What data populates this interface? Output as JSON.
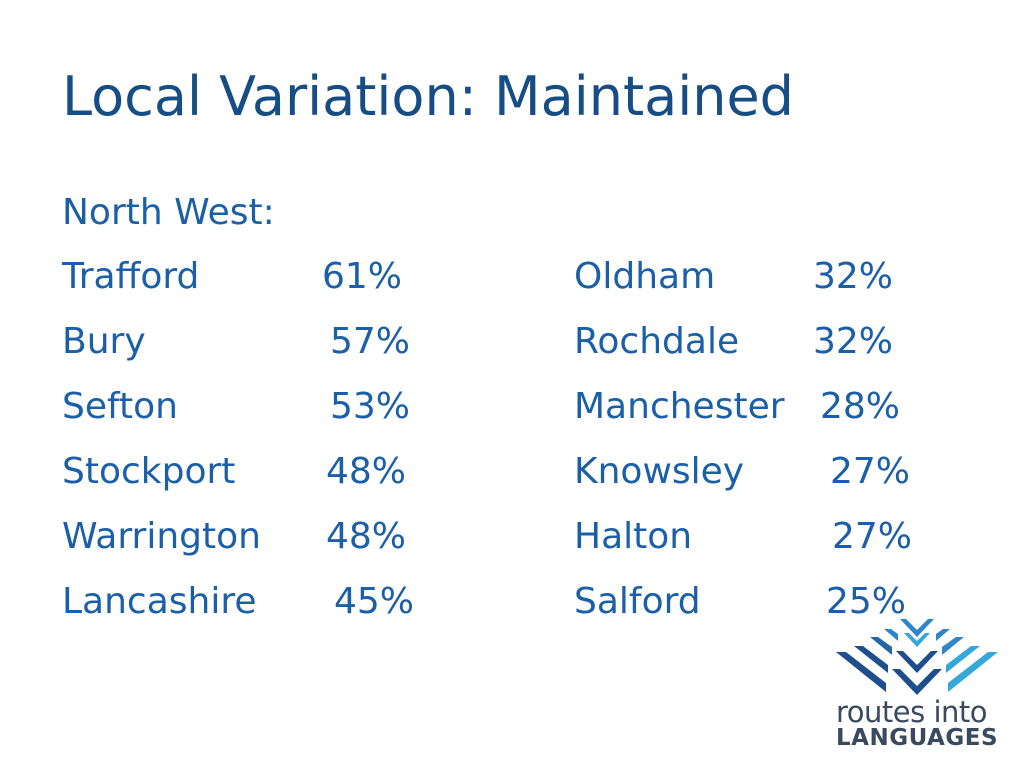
{
  "slide": {
    "title": "Local Variation: Maintained",
    "subtitle": "North West:"
  },
  "left_column": [
    {
      "name": "Trafford",
      "percent": "61%"
    },
    {
      "name": "Bury",
      "percent": "57%"
    },
    {
      "name": "Sefton",
      "percent": "53%"
    },
    {
      "name": "Stockport",
      "percent": "48%"
    },
    {
      "name": "Warrington",
      "percent": "48%"
    },
    {
      "name": "Lancashire",
      "percent": "45%"
    }
  ],
  "right_column": [
    {
      "name": "Oldham",
      "percent": "32%"
    },
    {
      "name": "Rochdale",
      "percent": "32%"
    },
    {
      "name": "Manchester",
      "percent": "28%"
    },
    {
      "name": "Knowsley",
      "percent": "27%"
    },
    {
      "name": "Halton",
      "percent": "27%"
    },
    {
      "name": "Salford",
      "percent": "25%"
    }
  ],
  "logo": {
    "line1": "routes into",
    "line2": "LANGUAGES"
  },
  "colors": {
    "title": "#164d85",
    "text": "#1a5fa8",
    "logo_dark_blue": "#1e4e8c",
    "logo_mid_blue": "#2f86c8",
    "logo_light_blue": "#36a7d9",
    "logo_text": "#3a4a5e"
  }
}
